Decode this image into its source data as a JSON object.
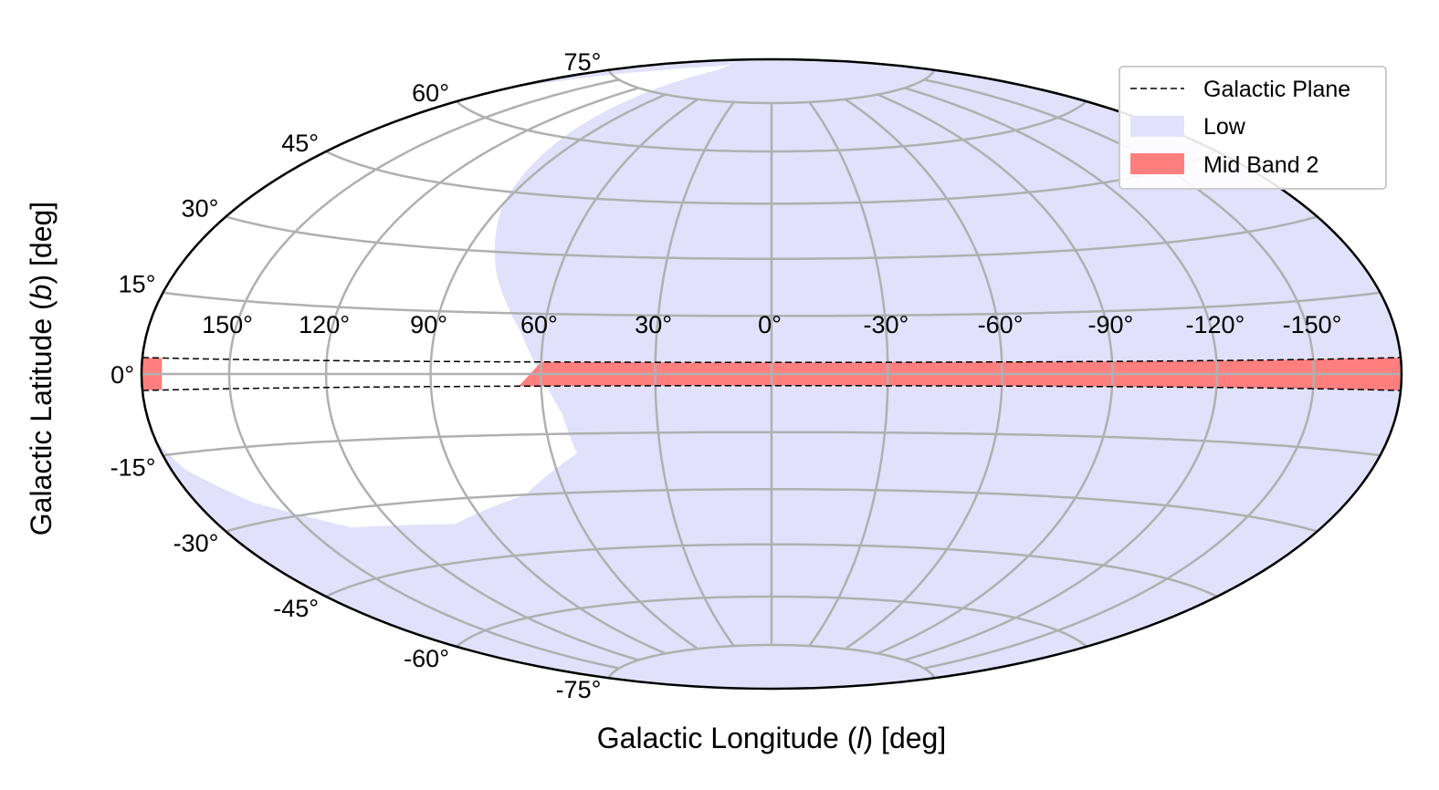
{
  "chart_data": {
    "type": "area",
    "projection": "Aitoff/Hammer all-sky",
    "xlabel_parts": [
      "Galactic Longitude (",
      "l",
      ") [deg]"
    ],
    "ylabel_parts": [
      "Galactic Latitude (",
      "b",
      ") [deg]"
    ],
    "x_ticks": [
      150,
      120,
      90,
      60,
      30,
      0,
      -30,
      -60,
      -90,
      -120,
      -150
    ],
    "x_tick_labels": [
      "150°",
      "120°",
      "90°",
      "60°",
      "30°",
      "0°",
      "-30°",
      "-60°",
      "-90°",
      "-120°",
      "-150°"
    ],
    "y_ticks": [
      75,
      60,
      45,
      30,
      15,
      0,
      -15,
      -30,
      -45,
      -60,
      -75
    ],
    "y_tick_labels": [
      "75°",
      "60°",
      "45°",
      "30°",
      "15°",
      "0°",
      "-15°",
      "-30°",
      "-45°",
      "-60°",
      "-75°"
    ],
    "xlim": [
      180,
      -180
    ],
    "ylim": [
      -90,
      90
    ],
    "grid": true,
    "legend_position": "top-right",
    "series": [
      {
        "name": "Galactic Plane",
        "kind": "dashed-boundary",
        "color": "#000000",
        "b_upper_deg": 3.0,
        "b_lower_deg": -3.0
      },
      {
        "name": "Low",
        "kind": "filled-region",
        "color": "#e1e1fb",
        "description_free": true,
        "excluded_boundary": [
          [
            180,
            65
          ],
          [
            165,
            76
          ],
          [
            150,
            82
          ],
          [
            128,
            86
          ],
          [
            112,
            84
          ],
          [
            105,
            72
          ],
          [
            98,
            58
          ],
          [
            90,
            42
          ],
          [
            78,
            25
          ],
          [
            66,
            10
          ],
          [
            60,
            0
          ],
          [
            55,
            -10
          ],
          [
            53,
            -20
          ],
          [
            72,
            -30
          ],
          [
            100,
            -36
          ],
          [
            135,
            -34
          ],
          [
            160,
            -26
          ],
          [
            175,
            -18
          ],
          [
            180,
            -12
          ]
        ]
      },
      {
        "name": "Mid Band 2",
        "kind": "filled-region",
        "color": "#ff7f7f",
        "l_range_deg": [
          63,
          -180
        ],
        "b_range_deg": [
          -3.0,
          3.0
        ],
        "wrap_sliver_l_deg": [
          180,
          173
        ]
      }
    ]
  }
}
